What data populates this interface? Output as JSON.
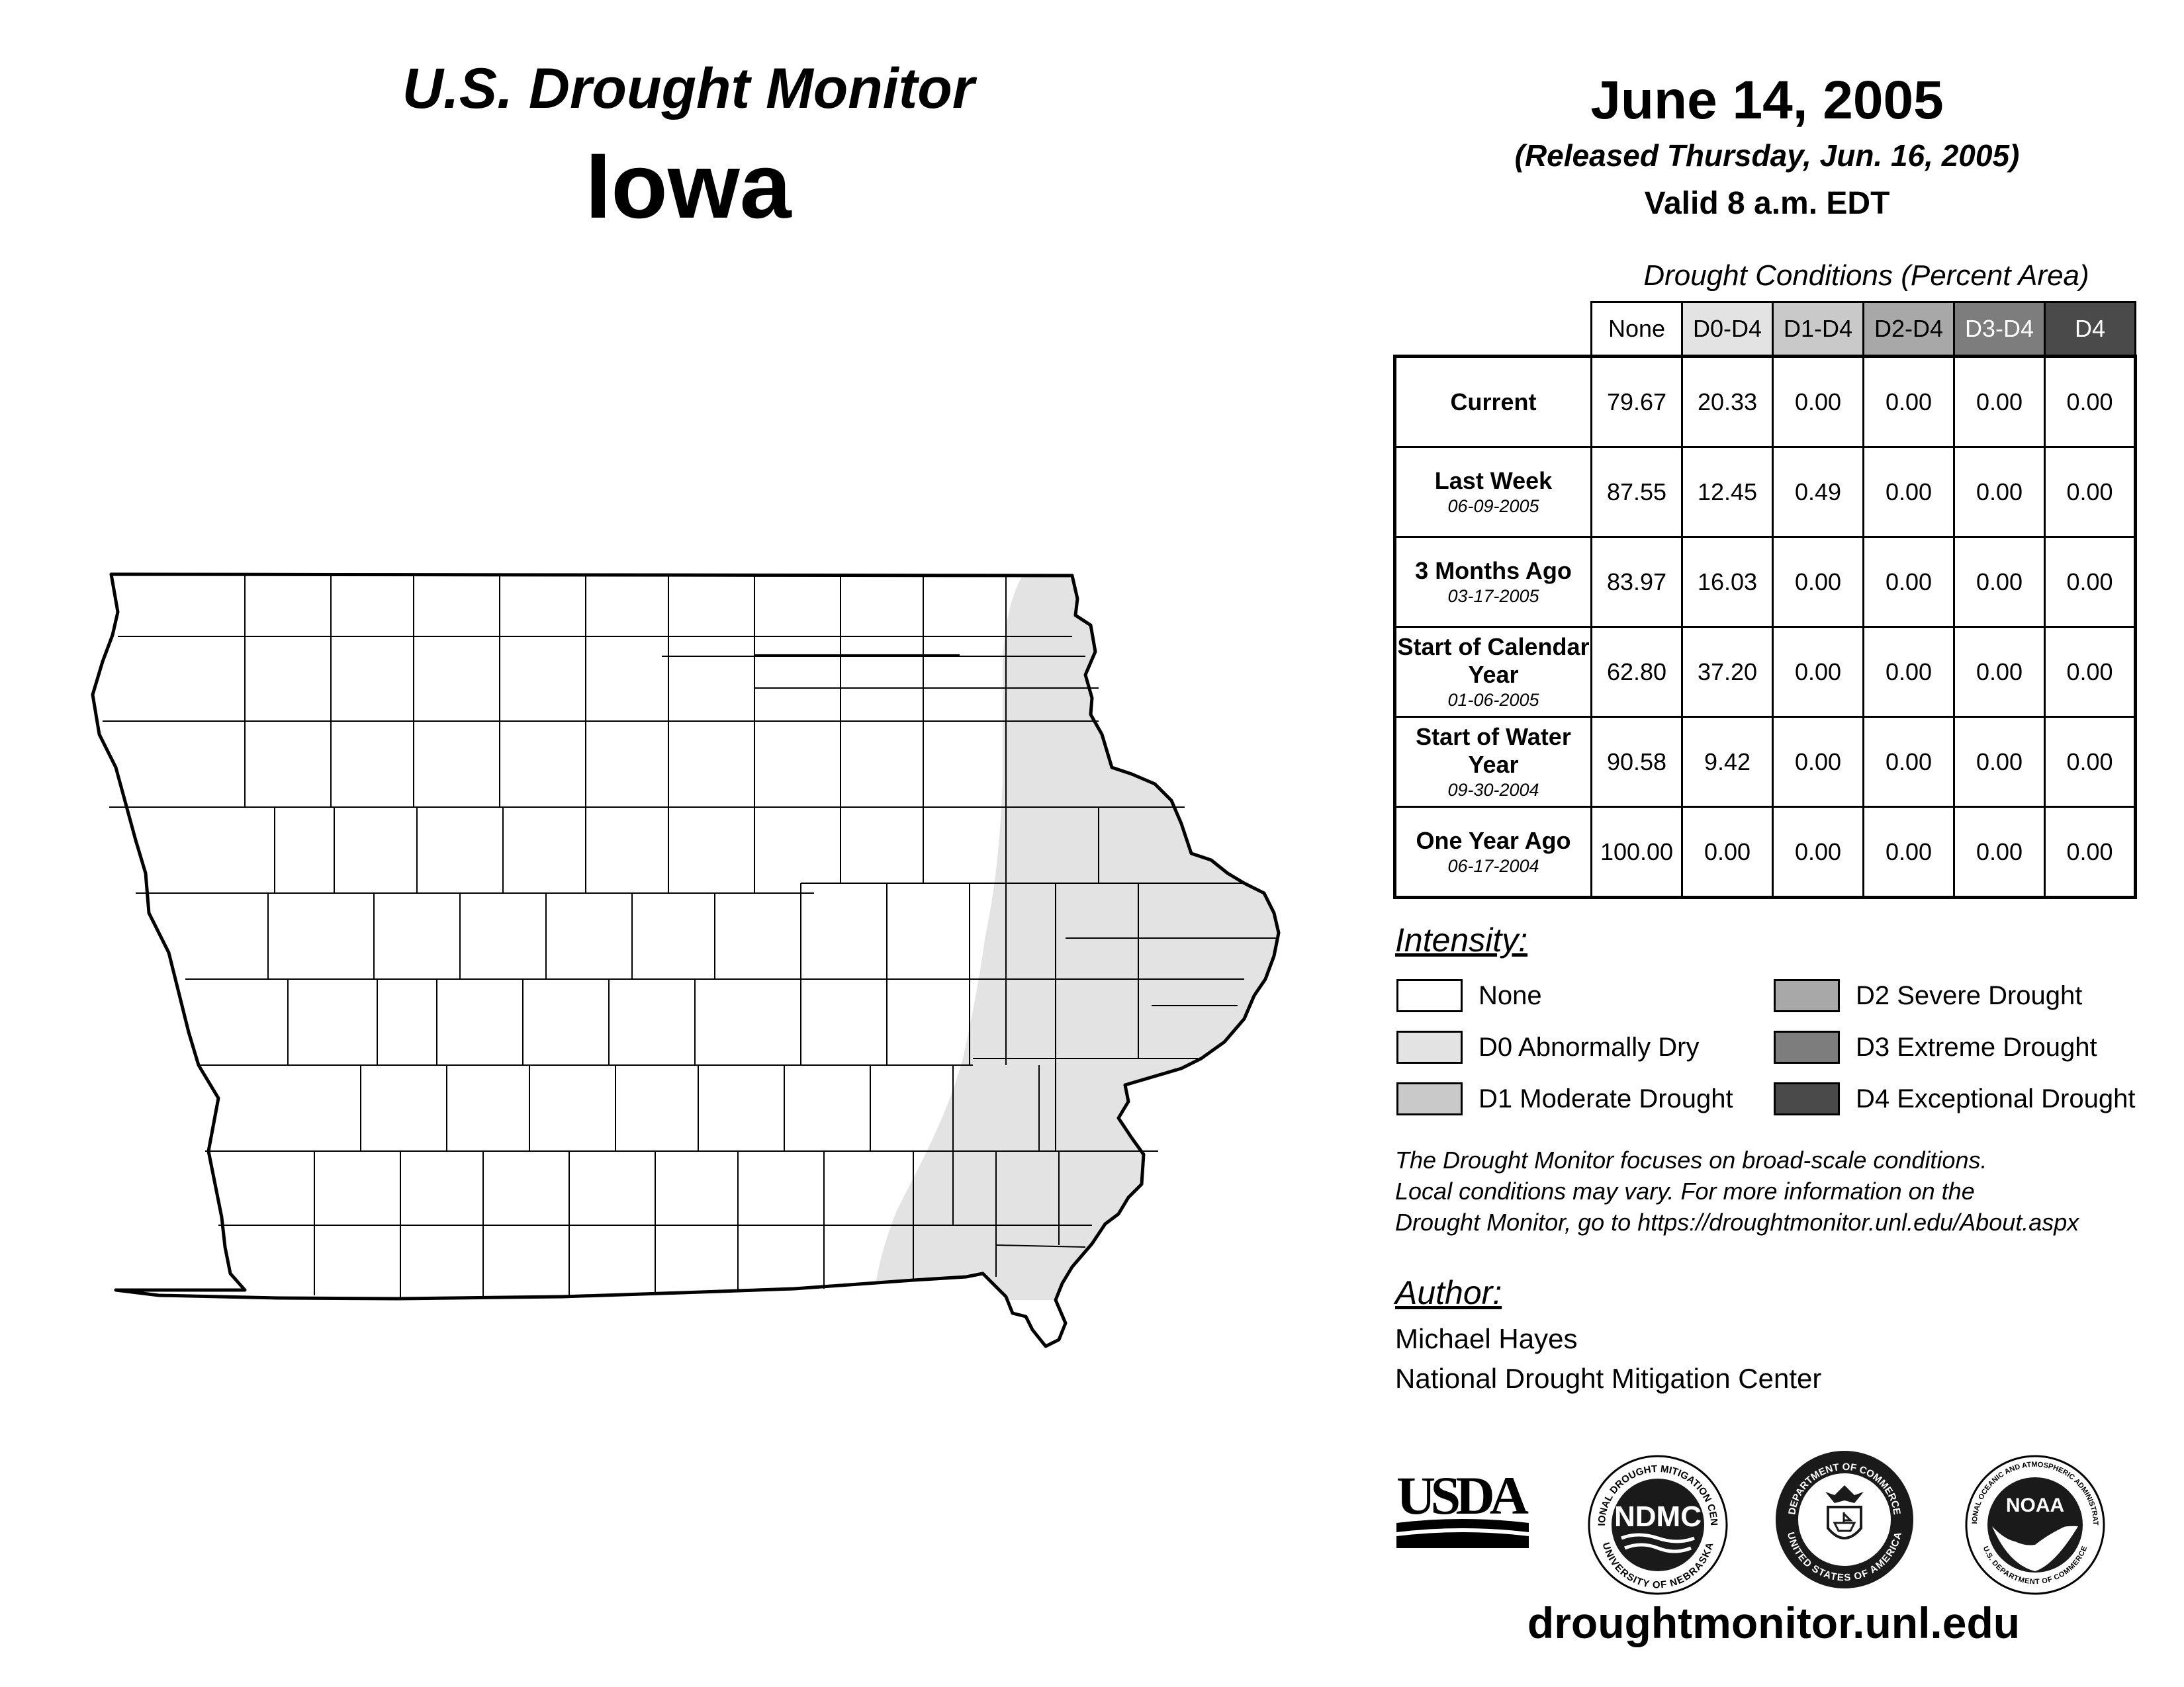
{
  "header": {
    "title": "U.S. Drought Monitor",
    "state": "Iowa",
    "date": "June 14, 2005",
    "released": "(Released Thursday, Jun. 16, 2005)",
    "valid": "Valid 8 a.m. EDT"
  },
  "conditions": {
    "title": "Drought Conditions (Percent Area)",
    "columns": [
      "None",
      "D0-D4",
      "D1-D4",
      "D2-D4",
      "D3-D4",
      "D4"
    ],
    "rows": [
      {
        "label": "Current",
        "date": "",
        "values": [
          "79.67",
          "20.33",
          "0.00",
          "0.00",
          "0.00",
          "0.00"
        ]
      },
      {
        "label": "Last Week",
        "date": "06-09-2005",
        "values": [
          "87.55",
          "12.45",
          "0.49",
          "0.00",
          "0.00",
          "0.00"
        ]
      },
      {
        "label": "3 Months Ago",
        "date": "03-17-2005",
        "values": [
          "83.97",
          "16.03",
          "0.00",
          "0.00",
          "0.00",
          "0.00"
        ]
      },
      {
        "label": "Start of Calendar Year",
        "date": "01-06-2005",
        "values": [
          "62.80",
          "37.20",
          "0.00",
          "0.00",
          "0.00",
          "0.00"
        ]
      },
      {
        "label": "Start of Water Year",
        "date": "09-30-2004",
        "values": [
          "90.58",
          "9.42",
          "0.00",
          "0.00",
          "0.00",
          "0.00"
        ]
      },
      {
        "label": "One Year Ago",
        "date": "06-17-2004",
        "values": [
          "100.00",
          "0.00",
          "0.00",
          "0.00",
          "0.00",
          "0.00"
        ]
      }
    ]
  },
  "legend": {
    "title": "Intensity:",
    "items": [
      {
        "label": "None",
        "color": "#ffffff"
      },
      {
        "label": "D0 Abnormally Dry",
        "color": "#e3e3e3"
      },
      {
        "label": "D1 Moderate Drought",
        "color": "#c9c9c9"
      },
      {
        "label": "D2 Severe Drought",
        "color": "#a8a8a8"
      },
      {
        "label": "D3 Extreme Drought",
        "color": "#7d7d7d"
      },
      {
        "label": "D4 Exceptional Drought",
        "color": "#4a4a4a"
      }
    ]
  },
  "note": {
    "line1": "The Drought Monitor focuses on broad-scale conditions.",
    "line2": "Local conditions may vary. For more information on the",
    "line3": "Drought Monitor, go to https://droughtmonitor.unl.edu/About.aspx"
  },
  "author": {
    "title": "Author:",
    "name": "Michael Hayes",
    "org": "National Drought Mitigation Center"
  },
  "logos": {
    "usda": "USDA",
    "ndmc": "NDMC",
    "ndmc_ring_top": "NATIONAL DROUGHT MITIGATION CENTER",
    "ndmc_ring_bottom": "UNIVERSITY OF NEBRASKA",
    "doc_ring_top": "DEPARTMENT OF COMMERCE",
    "doc_ring_bottom": "UNITED STATES OF AMERICA",
    "noaa": "NOAA",
    "noaa_ring_top": "NATIONAL OCEANIC AND ATMOSPHERIC ADMINISTRATION",
    "noaa_ring_bottom": "U.S. DEPARTMENT OF COMMERCE"
  },
  "map": {
    "d0_color": "#e3e3e3",
    "none_color": "#ffffff"
  },
  "footer": {
    "url": "droughtmonitor.unl.edu"
  }
}
